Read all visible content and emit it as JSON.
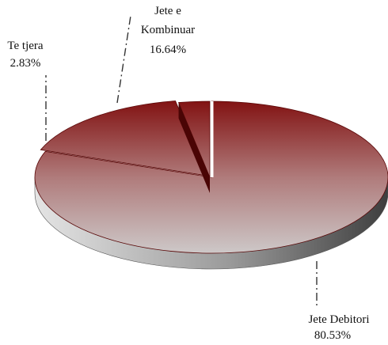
{
  "chart_data": {
    "type": "pie",
    "style": "3d-exploded",
    "legend": "none",
    "slices": [
      {
        "name": "Jete Debitori",
        "value": 80.53,
        "label": "80.53%",
        "color": "#7e0a0a"
      },
      {
        "name": "Jete e Kombinuar",
        "value": 16.64,
        "label": "16.64%",
        "color": "#7e0a0a"
      },
      {
        "name": "Te tjera",
        "value": 2.83,
        "label": "2.83%",
        "color": "#7e0a0a"
      }
    ]
  }
}
